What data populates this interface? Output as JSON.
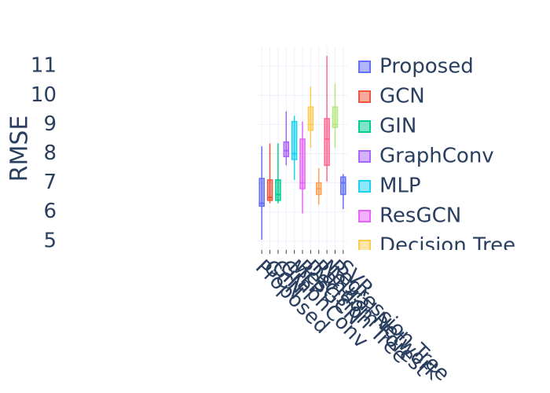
{
  "chart_data": {
    "type": "box",
    "ylabel": "RMSE",
    "ylim": [
      4.7,
      11.65
    ],
    "yticks": [
      5,
      6,
      7,
      8,
      9,
      10,
      11
    ],
    "grid": true,
    "series": [
      {
        "name": "Proposed",
        "color": "#636efa",
        "min": 5.05,
        "q1": 6.2,
        "median": 6.3,
        "q3": 7.15,
        "max": 8.25
      },
      {
        "name": "GCN",
        "color": "#EF553B",
        "min": 6.3,
        "q1": 6.4,
        "median": 6.5,
        "q3": 7.1,
        "max": 8.35
      },
      {
        "name": "GIN",
        "color": "#00cc96",
        "min": 6.3,
        "q1": 6.4,
        "median": 6.6,
        "q3": 7.1,
        "max": 8.35
      },
      {
        "name": "GraphConv",
        "color": "#ab63fa",
        "min": 7.6,
        "q1": 7.9,
        "median": 8.1,
        "q3": 8.4,
        "max": 9.45
      },
      {
        "name": "MLP",
        "color": "#19d3f3",
        "min": 7.1,
        "q1": 7.8,
        "median": 8.0,
        "q3": 9.1,
        "max": 9.3
      },
      {
        "name": "ResGCN",
        "color": "#e763fa",
        "min": 5.95,
        "q1": 6.8,
        "median": 7.0,
        "q3": 8.5,
        "max": 9.1
      },
      {
        "name": "Decision Tree",
        "color": "#FECB52",
        "min": 8.2,
        "q1": 8.8,
        "median": 9.0,
        "q3": 9.6,
        "max": 10.3
      },
      {
        "name": "Random Forest",
        "color": "#FFA15A",
        "min": 6.25,
        "q1": 6.6,
        "median": 6.8,
        "q3": 7.0,
        "max": 7.5
      },
      {
        "name": "Neural Network",
        "color": "#FF6692",
        "min": 7.05,
        "q1": 7.6,
        "median": 8.5,
        "q3": 9.2,
        "max": 11.35
      },
      {
        "name": "Regression Tree",
        "color": "#B6E880",
        "min": 8.2,
        "q1": 8.9,
        "median": 9.0,
        "q3": 9.6,
        "max": 10.4
      },
      {
        "name": "SVR",
        "color": "#636efa",
        "min": 6.1,
        "q1": 6.6,
        "median": 7.0,
        "q3": 7.2,
        "max": 7.3
      }
    ]
  }
}
